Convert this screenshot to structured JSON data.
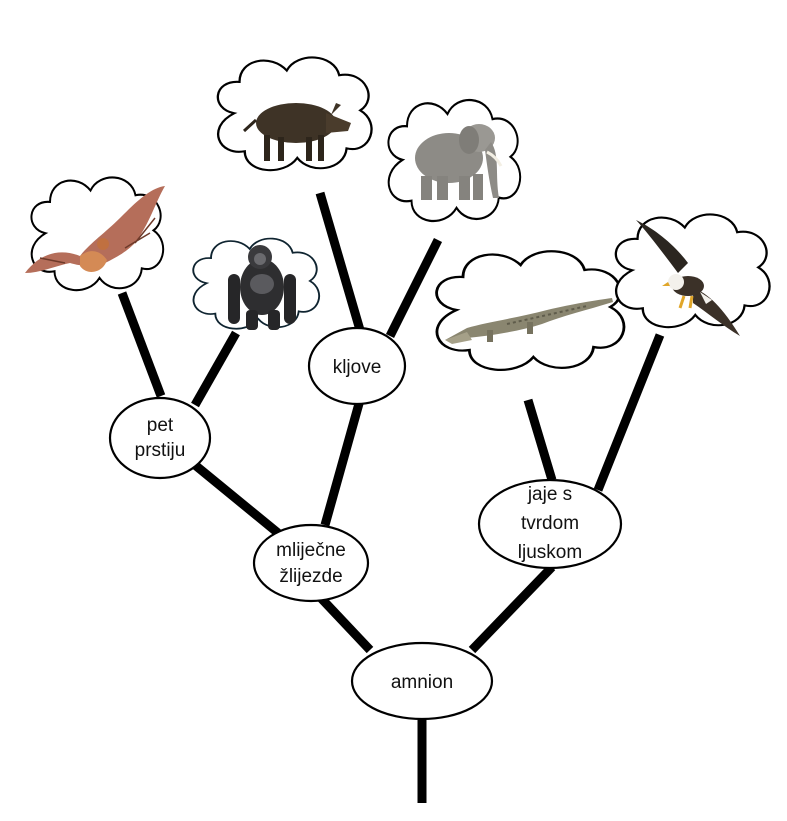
{
  "nodes": {
    "amnion": {
      "lines": [
        "amnion"
      ]
    },
    "mammary_glands": {
      "lines": [
        "mliječne",
        "žlijezde"
      ]
    },
    "five_fingers": {
      "lines": [
        "pet",
        "prstiju"
      ]
    },
    "tusks": {
      "lines": [
        "kljove"
      ]
    },
    "hard_shell_egg": {
      "lines": [
        "jaje s",
        "tvrdom",
        "ljuskom"
      ]
    }
  },
  "leaves": [
    {
      "animal": "bat",
      "icon": "bat-icon"
    },
    {
      "animal": "gorilla",
      "icon": "gorilla-icon"
    },
    {
      "animal": "wild boar",
      "icon": "boar-icon"
    },
    {
      "animal": "elephant",
      "icon": "elephant-icon"
    },
    {
      "animal": "crocodile",
      "icon": "crocodile-icon"
    },
    {
      "animal": "eagle",
      "icon": "eagle-icon"
    }
  ],
  "colors": {
    "line": "#000000",
    "background": "#ffffff"
  }
}
